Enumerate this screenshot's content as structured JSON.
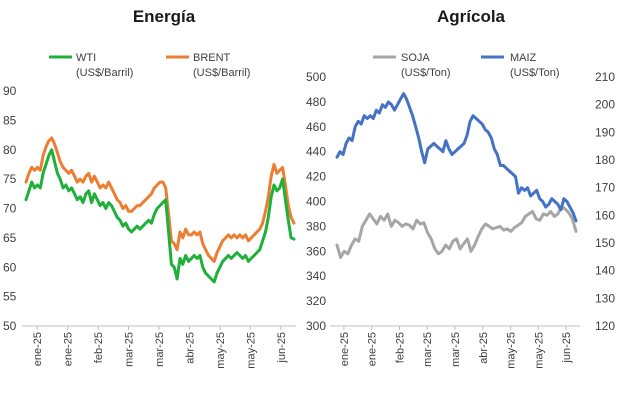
{
  "chart_data": [
    {
      "type": "line",
      "title": "Energía",
      "ylim": [
        50,
        90
      ],
      "yticks": [
        50,
        55,
        60,
        65,
        70,
        75,
        80,
        85,
        90
      ],
      "xlabels": [
        "ene-25",
        "ene-25",
        "feb-25",
        "mar-25",
        "mar-25",
        "abr-25",
        "may-25",
        "may-25",
        "jun-25"
      ],
      "series": [
        {
          "name": "WTI",
          "unit": "(US$/Barril)",
          "color": "#1fb03a",
          "values": [
            71.5,
            73.0,
            74.5,
            73.5,
            74.0,
            73.5,
            76.0,
            77.5,
            79.0,
            80.0,
            78.0,
            76.0,
            75.0,
            73.5,
            74.0,
            73.0,
            73.5,
            72.5,
            71.5,
            72.0,
            71.0,
            72.5,
            73.0,
            71.0,
            72.5,
            71.5,
            70.5,
            71.0,
            70.0,
            71.0,
            70.5,
            69.5,
            68.5,
            68.0,
            67.0,
            67.5,
            66.5,
            66.0,
            66.5,
            67.0,
            66.5,
            67.0,
            67.5,
            68.0,
            67.5,
            69.0,
            70.0,
            70.5,
            71.0,
            71.5,
            66.0,
            60.5,
            60.0,
            58.0,
            61.5,
            60.5,
            62.0,
            61.0,
            61.5,
            62.0,
            61.5,
            62.0,
            60.0,
            59.0,
            58.5,
            58.0,
            57.5,
            59.0,
            60.0,
            61.0,
            61.5,
            62.0,
            61.5,
            62.0,
            62.5,
            62.0,
            61.5,
            62.0,
            61.0,
            61.5,
            62.0,
            62.5,
            63.0,
            64.5,
            66.0,
            68.5,
            72.0,
            74.0,
            73.0,
            73.5,
            75.0,
            71.5,
            68.0,
            65.0,
            64.8
          ]
        },
        {
          "name": "BRENT",
          "unit": "(US$/Barril)",
          "color": "#ed7d31",
          "values": [
            74.5,
            76.0,
            77.0,
            76.5,
            77.0,
            76.5,
            79.0,
            80.5,
            81.5,
            82.0,
            81.0,
            79.5,
            78.0,
            77.0,
            76.5,
            76.0,
            76.5,
            75.5,
            74.5,
            75.0,
            74.5,
            75.5,
            76.0,
            74.5,
            75.5,
            74.5,
            73.5,
            74.0,
            73.5,
            74.5,
            73.5,
            72.5,
            71.5,
            71.0,
            70.0,
            70.5,
            69.5,
            69.5,
            70.0,
            70.5,
            70.5,
            71.0,
            71.5,
            72.0,
            72.5,
            73.5,
            74.0,
            74.5,
            74.5,
            73.5,
            69.0,
            64.5,
            64.0,
            63.0,
            66.0,
            65.0,
            66.5,
            65.5,
            65.5,
            66.0,
            65.5,
            66.0,
            64.0,
            63.0,
            62.0,
            61.5,
            61.0,
            62.5,
            63.5,
            64.5,
            65.0,
            65.5,
            65.0,
            65.5,
            65.0,
            65.5,
            65.0,
            65.5,
            64.5,
            65.0,
            65.5,
            66.0,
            66.5,
            67.5,
            69.5,
            72.0,
            75.5,
            77.5,
            76.0,
            76.5,
            77.0,
            74.0,
            70.5,
            68.5,
            67.5
          ]
        }
      ]
    },
    {
      "type": "line",
      "title": "Agrícola",
      "ylim_left": [
        300,
        500
      ],
      "yticks_left": [
        300,
        320,
        340,
        360,
        380,
        400,
        420,
        440,
        460,
        480,
        500
      ],
      "ylim_right": [
        120,
        210
      ],
      "yticks_right": [
        120,
        130,
        140,
        150,
        160,
        170,
        180,
        190,
        200,
        210
      ],
      "xlabels": [
        "ene-25",
        "ene-25",
        "feb-25",
        "mar-25",
        "mar-25",
        "abr-25",
        "may-25",
        "may-25",
        "jun-25"
      ],
      "series": [
        {
          "name": "SOJA",
          "unit": "(US$/Ton)",
          "axis": "left",
          "color": "#a6a6a6",
          "values": [
            365,
            355,
            360,
            358,
            365,
            370,
            368,
            380,
            385,
            390,
            386,
            382,
            388,
            385,
            390,
            380,
            385,
            383,
            380,
            382,
            381,
            378,
            385,
            382,
            383,
            375,
            370,
            362,
            358,
            360,
            365,
            362,
            368,
            370,
            362,
            366,
            370,
            360,
            365,
            372,
            378,
            382,
            380,
            378,
            379,
            380,
            377,
            378,
            376,
            379,
            381,
            383,
            388,
            390,
            392,
            386,
            385,
            390,
            389,
            392,
            388,
            390,
            396,
            394,
            391,
            386,
            376
          ]
        },
        {
          "name": "MAIZ",
          "unit": "(US$/Ton)",
          "axis": "right",
          "color": "#4472c4",
          "values": [
            181,
            183,
            182,
            186,
            188,
            187,
            192,
            194,
            193,
            196,
            195,
            196,
            195,
            198,
            197,
            200,
            199,
            201,
            200,
            198,
            200,
            202,
            204,
            202,
            199,
            196,
            192,
            188,
            183,
            179,
            184,
            185,
            186,
            185,
            184,
            183,
            187,
            184,
            182,
            183,
            184,
            185,
            186,
            189,
            194,
            196,
            195,
            194,
            193,
            191,
            190,
            188,
            184,
            182,
            178,
            178,
            177,
            176,
            175,
            174,
            168,
            170,
            169,
            170,
            167,
            168,
            169,
            166,
            165,
            163,
            164,
            166,
            165,
            164,
            162,
            166,
            165,
            163,
            161,
            158
          ]
        }
      ]
    }
  ]
}
